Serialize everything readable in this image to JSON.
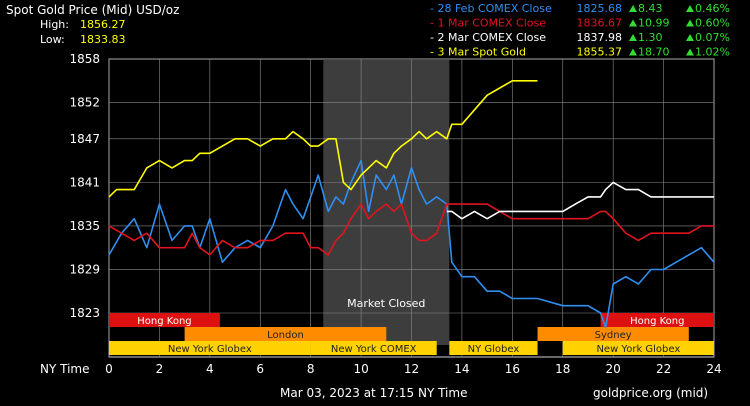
{
  "header": {
    "title": "Spot Gold Price (Mid) USD/oz",
    "high_label": "High:",
    "high_value": "1856.27",
    "low_label": "Low:",
    "low_value": "1833.83"
  },
  "legend": [
    {
      "label": "- 28 Feb COMEX Close",
      "price": "1825.68",
      "change": "8.43",
      "pct": "0.46%",
      "color": "#2f8ff0"
    },
    {
      "label": "- 1 Mar COMEX Close",
      "price": "1836.67",
      "change": "10.99",
      "pct": "0.60%",
      "color": "#e0141e"
    },
    {
      "label": "- 2 Mar COMEX Close",
      "price": "1837.98",
      "change": "1.30",
      "pct": "0.07%",
      "color": "#ffffff"
    },
    {
      "label": "- 3 Mar Spot Gold",
      "price": "1855.37",
      "change": "18.70",
      "pct": "1.02%",
      "color": "#ffff00"
    }
  ],
  "colors": {
    "up_arrow": "#33dd33",
    "gold": "#ffff00",
    "red": "#d71921",
    "blue": "#2f8ff0",
    "white": "#ffffff",
    "session_orange": "#ff8c00",
    "session_yellow": "#ffd200",
    "session_red": "#dd1111",
    "closed_shade": "#3d3d3d"
  },
  "chart_data": {
    "type": "line",
    "title": "Spot Gold Price (Mid) USD/oz",
    "xlabel": "NY Time",
    "ylabel": "",
    "xlim": [
      0,
      24
    ],
    "ylim": [
      1820,
      1858
    ],
    "x_ticks": [
      "0",
      "2",
      "4",
      "6",
      "8",
      "10",
      "12",
      "14",
      "16",
      "18",
      "20",
      "22",
      "24"
    ],
    "y_ticks": [
      "1858",
      "1852",
      "1847",
      "1841",
      "1835",
      "1829",
      "1823"
    ],
    "grid": true,
    "market_closed": {
      "label": "Market Closed",
      "from": 8.5,
      "to": 13.5
    },
    "sessions": [
      {
        "name": "Hong Kong",
        "from": 0,
        "to": 4.4,
        "row": 0,
        "color": "#dd1111"
      },
      {
        "name": "Hong Kong",
        "from": 19.5,
        "to": 24,
        "row": 0,
        "color": "#dd1111"
      },
      {
        "name": "London",
        "from": 3.0,
        "to": 11.0,
        "row": 1,
        "color": "#ff8c00"
      },
      {
        "name": "Sydney",
        "from": 17.0,
        "to": 23.0,
        "row": 1,
        "color": "#ff8c00"
      },
      {
        "name": "New York Globex",
        "from": 0,
        "to": 8.0,
        "row": 2,
        "color": "#ffd200"
      },
      {
        "name": "New York COMEX",
        "from": 8.0,
        "to": 13.0,
        "row": 2,
        "color": "#ffd200"
      },
      {
        "name": "NY Globex",
        "from": 13.5,
        "to": 17.0,
        "row": 2,
        "color": "#ffd200"
      },
      {
        "name": "New York Globex",
        "from": 18.0,
        "to": 24.0,
        "row": 2,
        "color": "#ffd200"
      }
    ],
    "series": [
      {
        "name": "28 Feb COMEX Close",
        "color": "#2f8ff0",
        "x": [
          0,
          0.5,
          1,
          1.5,
          2,
          2.5,
          3,
          3.3,
          3.6,
          4,
          4.5,
          5,
          5.5,
          6,
          6.5,
          7,
          7.3,
          7.7,
          8,
          8.3,
          8.7,
          9,
          9.3,
          9.6,
          10,
          10.3,
          10.6,
          11,
          11.3,
          11.6,
          12,
          12.3,
          12.6,
          13,
          13.4,
          13.6,
          14,
          14.5,
          15,
          15.5,
          16,
          17,
          18,
          18.5,
          19,
          19.5,
          19.7,
          20,
          20.5,
          21,
          21.5,
          22,
          22.5,
          23,
          23.5,
          24
        ],
        "y": [
          1831,
          1834,
          1836,
          1832,
          1838,
          1833,
          1835,
          1835,
          1832,
          1836,
          1830,
          1832,
          1833,
          1832,
          1835,
          1840,
          1838,
          1836,
          1839,
          1842,
          1837,
          1839,
          1838,
          1841,
          1844,
          1837,
          1842,
          1840,
          1842,
          1838,
          1843,
          1840,
          1838,
          1839,
          1838,
          1830,
          1828,
          1828,
          1826,
          1826,
          1825,
          1825,
          1824,
          1824,
          1824,
          1823,
          1821,
          1827,
          1828,
          1827,
          1829,
          1829,
          1830,
          1831,
          1832,
          1830
        ]
      },
      {
        "name": "1 Mar COMEX Close",
        "color": "#e0141e",
        "x": [
          0,
          0.5,
          1,
          1.5,
          2,
          2.5,
          3,
          3.3,
          3.6,
          4,
          4.5,
          5,
          5.5,
          6,
          6.5,
          7,
          7.3,
          7.7,
          8,
          8.3,
          8.7,
          9,
          9.3,
          9.6,
          10,
          10.3,
          10.6,
          11,
          11.3,
          11.6,
          12,
          12.3,
          12.6,
          13,
          13.4,
          13.6,
          14,
          14.5,
          15,
          15.5,
          16,
          17,
          18,
          18.5,
          19,
          19.5,
          19.7,
          20,
          20.5,
          21,
          21.5,
          22,
          22.5,
          23,
          23.5,
          24
        ],
        "y": [
          1835,
          1834,
          1833,
          1834,
          1832,
          1832,
          1832,
          1834,
          1832,
          1831,
          1833,
          1832,
          1832,
          1833,
          1833,
          1834,
          1834,
          1834,
          1832,
          1832,
          1831,
          1833,
          1834,
          1836,
          1838,
          1836,
          1837,
          1838,
          1837,
          1838,
          1834,
          1833,
          1833,
          1834,
          1838,
          1838,
          1838,
          1838,
          1838,
          1837,
          1836,
          1836,
          1836,
          1836,
          1836,
          1837,
          1837,
          1836,
          1834,
          1833,
          1834,
          1834,
          1834,
          1834,
          1835,
          1835
        ]
      },
      {
        "name": "2 Mar COMEX Close",
        "color": "#ffffff",
        "x": [
          13.4,
          13.6,
          14,
          14.5,
          15,
          15.5,
          16,
          17,
          18,
          18.5,
          19,
          19.5,
          19.7,
          20,
          20.5,
          21,
          21.5,
          22,
          22.5,
          23,
          23.5,
          24
        ],
        "y": [
          1837,
          1837,
          1836,
          1837,
          1836,
          1837,
          1837,
          1837,
          1837,
          1838,
          1839,
          1839,
          1840,
          1841,
          1840,
          1840,
          1839,
          1839,
          1839,
          1839,
          1839,
          1839
        ]
      },
      {
        "name": "3 Mar Spot Gold",
        "color": "#ffff00",
        "x": [
          0,
          0.3,
          0.6,
          1,
          1.5,
          2,
          2.5,
          3,
          3.3,
          3.6,
          4,
          4.5,
          5,
          5.5,
          6,
          6.5,
          7,
          7.3,
          7.7,
          8,
          8.3,
          8.7,
          9,
          9.3,
          9.6,
          10,
          10.3,
          10.6,
          11,
          11.3,
          11.6,
          12,
          12.3,
          12.6,
          13,
          13.4,
          13.6,
          14,
          14.5,
          15,
          15.5,
          16,
          16.3,
          16.6,
          17
        ],
        "y": [
          1839,
          1840,
          1840,
          1840,
          1843,
          1844,
          1843,
          1844,
          1844,
          1845,
          1845,
          1846,
          1847,
          1847,
          1846,
          1847,
          1847,
          1848,
          1847,
          1846,
          1846,
          1847,
          1847,
          1841,
          1840,
          1842,
          1843,
          1844,
          1843,
          1845,
          1846,
          1847,
          1848,
          1847,
          1848,
          1847,
          1849,
          1849,
          1851,
          1853,
          1854,
          1855,
          1855,
          1855,
          1855
        ]
      }
    ]
  },
  "footer": {
    "xaxis_label": "NY Time",
    "timestamp": "Mar 03, 2023 at 17:15 NY Time",
    "source": "goldprice.org (mid)"
  }
}
